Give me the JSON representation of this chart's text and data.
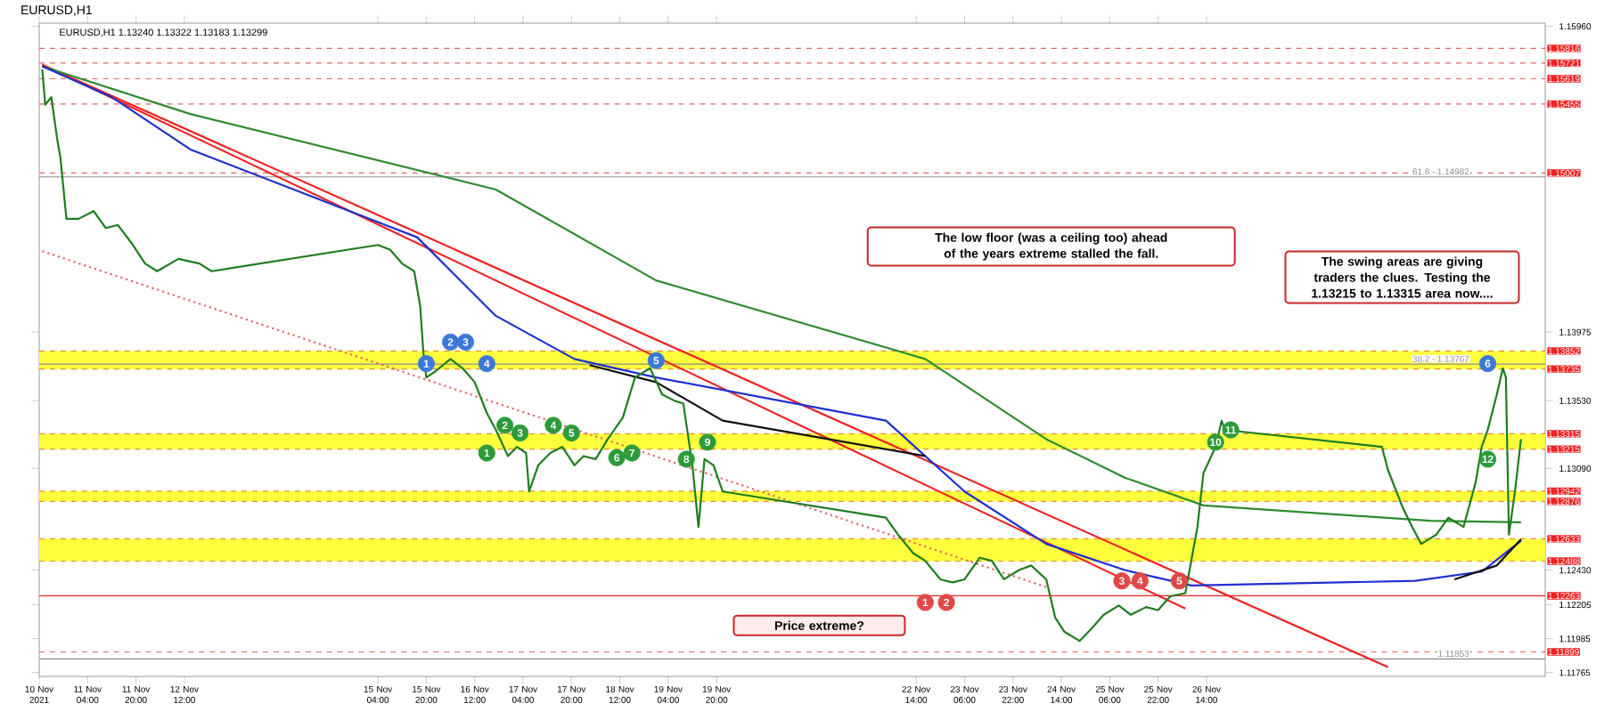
{
  "chart_data": {
    "type": "line",
    "title": "EURUSD,H1",
    "subtitle": "EURUSD,H1  1.13240 1.13322 1.13183 1.13299",
    "xlim": [
      "2021-11-10T12:00",
      "2021-12-01T06:00"
    ],
    "ylim": [
      1.1174,
      1.1598
    ],
    "xticks": [
      {
        "value": "2021-11-10T12:00",
        "label": "10 Nov 2021"
      },
      {
        "value": "2021-11-11T04:00",
        "label": "11 Nov 04:00"
      },
      {
        "value": "2021-11-11T20:00",
        "label": "11 Nov 20:00"
      },
      {
        "value": "2021-11-12T12:00",
        "label": "12 Nov 12:00"
      },
      {
        "value": "2021-11-15T04:00",
        "label": "15 Nov 04:00"
      },
      {
        "value": "2021-11-15T20:00",
        "label": "15 Nov 20:00"
      },
      {
        "value": "2021-11-16T12:00",
        "label": "16 Nov 12:00"
      },
      {
        "value": "2021-11-17T04:00",
        "label": "17 Nov 04:00"
      },
      {
        "value": "2021-11-17T20:00",
        "label": "17 Nov 20:00"
      },
      {
        "value": "2021-11-18T12:00",
        "label": "18 Nov 12:00"
      },
      {
        "value": "2021-11-19T04:00",
        "label": "19 Nov 04:00"
      },
      {
        "value": "2021-11-19T20:00",
        "label": "19 Nov 20:00"
      },
      {
        "value": "2021-11-22T14:00",
        "label": "22 Nov 14:00"
      },
      {
        "value": "2021-11-23T06:00",
        "label": "23 Nov 06:00"
      },
      {
        "value": "2021-11-23T22:00",
        "label": "23 Nov 22:00"
      },
      {
        "value": "2021-11-24T14:00",
        "label": "24 Nov 14:00"
      },
      {
        "value": "2021-11-25T06:00",
        "label": "25 Nov 06:00"
      },
      {
        "value": "2021-11-25T22:00",
        "label": "25 Nov 22:00"
      },
      {
        "value": "2021-11-26T14:00",
        "label": "26 Nov 14:00"
      }
    ],
    "yticks": [
      {
        "value": 1.11765,
        "label": "1.11765"
      },
      {
        "value": 1.11985,
        "label": "1.11985"
      },
      {
        "value": 1.12205,
        "label": "1.12205"
      },
      {
        "value": 1.1243,
        "label": "1.12430"
      },
      {
        "value": 1.1309,
        "label": "1.13090"
      },
      {
        "value": 1.1353,
        "label": "1.13530"
      },
      {
        "value": 1.13975,
        "label": "1.13975"
      },
      {
        "value": 1.1596,
        "label": "1.15960"
      }
    ],
    "bands": [
      {
        "axis": "y",
        "from": 1.13735,
        "to": 1.13852,
        "color": "#ffff3c"
      },
      {
        "axis": "y",
        "from": 1.13215,
        "to": 1.13315,
        "color": "#ffff3c"
      },
      {
        "axis": "y",
        "from": 1.12876,
        "to": 1.12942,
        "color": "#ffff3c"
      },
      {
        "axis": "y",
        "from": 1.12488,
        "to": 1.12633,
        "color": "#ffff3c"
      }
    ],
    "ref_lines": [
      {
        "axis": "y",
        "value": 1.15816,
        "label": "1.15816",
        "color": "#e06666",
        "line_style": "dashed"
      },
      {
        "axis": "y",
        "value": 1.15721,
        "label": "1.15721",
        "color": "#e06666",
        "line_style": "dashed"
      },
      {
        "axis": "y",
        "value": 1.15619,
        "label": "1.15619",
        "color": "#e06666",
        "line_style": "dashed"
      },
      {
        "axis": "y",
        "value": 1.15455,
        "label": "1.15455",
        "color": "#e06666",
        "line_style": "dashed"
      },
      {
        "axis": "y",
        "value": 1.15007,
        "label": "1.15007",
        "color": "#e06666",
        "line_style": "dashed"
      },
      {
        "axis": "y",
        "value": 1.14982,
        "label": "1.14982",
        "color": "#8c8c8c",
        "line_style": "solid"
      },
      {
        "axis": "y",
        "value": 1.13852,
        "label": "1.13852",
        "color": "#e0902c",
        "line_style": "dashed"
      },
      {
        "axis": "y",
        "value": 1.13767,
        "label": "1.13767",
        "color": "#8c8c8c",
        "line_style": "solid"
      },
      {
        "axis": "y",
        "value": 1.13735,
        "label": "1.13735",
        "color": "#e0902c",
        "line_style": "dashed"
      },
      {
        "axis": "y",
        "value": 1.13315,
        "label": "1.13315",
        "color": "#e0902c",
        "line_style": "dashed"
      },
      {
        "axis": "y",
        "value": 1.13215,
        "label": "1.13215",
        "color": "#e0902c",
        "line_style": "dashed"
      },
      {
        "axis": "y",
        "value": 1.12942,
        "label": "1.12942",
        "color": "#e0902c",
        "line_style": "dashed"
      },
      {
        "axis": "y",
        "value": 1.12876,
        "label": "1.12876",
        "color": "#e0902c",
        "line_style": "dashed"
      },
      {
        "axis": "y",
        "value": 1.12633,
        "label": "1.12633",
        "color": "#e0902c",
        "line_style": "dashed"
      },
      {
        "axis": "y",
        "value": 1.12488,
        "label": "1.12488",
        "color": "#e0902c",
        "line_style": "dashed"
      },
      {
        "axis": "y",
        "value": 1.12263,
        "label": "1.12263",
        "color": "#ee2222",
        "line_style": "solid"
      },
      {
        "axis": "y",
        "value": 1.11899,
        "label": "1.11899",
        "color": "#e06666",
        "line_style": "dashed"
      },
      {
        "axis": "y",
        "value": 1.11853,
        "label": "1.11853",
        "color": "#8c8c8c",
        "line_style": "solid"
      }
    ],
    "series": [
      {
        "type": "line",
        "color": "#ee2222",
        "line_style": "solid",
        "x": [
          "2021-11-10T13:00",
          "2021-11-26T07:00"
        ],
        "values": [
          1.1571,
          1.1218
        ]
      },
      {
        "type": "line",
        "color": "#ee2222",
        "line_style": "solid",
        "x": [
          "2021-11-10T13:00",
          "2021-11-29T02:00"
        ],
        "values": [
          1.1571,
          1.118
        ]
      },
      {
        "type": "line",
        "color": "#e06666",
        "line_style": "dotted",
        "x": [
          "2021-11-10T13:00",
          "2021-11-24T09:00"
        ],
        "values": [
          1.145,
          1.1232
        ]
      },
      {
        "type": "line",
        "color": "#2e8b2e",
        "line_style": "solid",
        "x": [
          "2021-11-10T13:00",
          "2021-11-12T14:00",
          "2021-11-16T19:00",
          "2021-11-19T00:00",
          "2021-11-22T17:00",
          "2021-11-24T09:00",
          "2021-11-25T11:00",
          "2021-11-26T13:00",
          "2021-11-29T16:00",
          "2021-11-30T22:00"
        ],
        "values": [
          1.157,
          1.1539,
          1.149,
          1.1431,
          1.138,
          1.1328,
          1.1303,
          1.1285,
          1.1275,
          1.1274
        ]
      },
      {
        "type": "line",
        "color": "#1f2fd0",
        "line_style": "solid",
        "x": [
          "2021-11-10T13:00",
          "2021-11-11T12:00",
          "2021-11-12T14:00",
          "2021-11-15T17:00",
          "2021-11-16T19:00",
          "2021-11-17T21:00",
          "2021-11-19T00:00",
          "2021-11-22T04:00",
          "2021-11-23T06:00",
          "2021-11-24T09:00",
          "2021-11-25T11:00",
          "2021-11-26T09:00",
          "2021-11-29T11:00",
          "2021-11-30T09:00",
          "2021-11-30T22:00"
        ],
        "values": [
          1.157,
          1.155,
          1.1516,
          1.1459,
          1.1408,
          1.138,
          1.1368,
          1.134,
          1.1294,
          1.126,
          1.1243,
          1.1233,
          1.1236,
          1.1242,
          1.1262
        ]
      },
      {
        "type": "line",
        "color": "#111111",
        "line_style": "solid",
        "x": [
          "2021-11-18T02:00",
          "2021-11-19T00:00",
          "2021-11-19T22:00",
          "2021-11-22T17:00",
          "2021-11-25T10:00",
          "2021-11-30T00:00",
          "2021-11-30T14:00",
          "2021-11-30T22:00"
        ],
        "values": [
          1.1376,
          1.1365,
          1.134,
          1.1317,
          null,
          1.1237,
          1.1246,
          1.1263
        ]
      },
      {
        "color": "#1e7d1e",
        "line_style": "solid",
        "x": [
          "2021-11-10T13:00",
          "2021-11-10T14:00",
          "2021-11-10T16:00",
          "2021-11-10T18:00",
          "2021-11-10T19:00",
          "2021-11-10T21:00",
          "2021-11-11T01:00",
          "2021-11-11T06:00",
          "2021-11-11T10:00",
          "2021-11-11T14:00",
          "2021-11-11T19:00",
          "2021-11-11T23:00",
          "2021-11-12T03:00",
          "2021-11-12T10:00",
          "2021-11-12T17:00",
          "2021-11-12T21:00",
          "2021-11-15T04:00",
          "2021-11-15T08:00",
          "2021-11-15T12:00",
          "2021-11-15T16:00",
          "2021-11-15T18:00",
          "2021-11-15T19:00",
          "2021-11-15T20:00",
          "2021-11-15T23:00",
          "2021-11-16T04:00",
          "2021-11-16T08:00",
          "2021-11-16T12:00",
          "2021-11-16T16:00",
          "2021-11-16T19:00",
          "2021-11-16T23:00",
          "2021-11-17T02:00",
          "2021-11-17T05:00",
          "2021-11-17T06:00",
          "2021-11-17T09:00",
          "2021-11-17T13:00",
          "2021-11-17T17:00",
          "2021-11-17T21:00",
          "2021-11-18T00:00",
          "2021-11-18T04:00",
          "2021-11-18T08:00",
          "2021-11-18T13:00",
          "2021-11-18T17:00",
          "2021-11-18T22:00",
          "2021-11-19T02:00",
          "2021-11-19T06:00",
          "2021-11-19T09:00",
          "2021-11-19T12:00",
          "2021-11-19T14:00",
          "2021-11-19T16:00",
          "2021-11-19T19:00",
          "2021-11-19T22:00",
          "2021-11-22T04:00",
          "2021-11-22T08:00",
          "2021-11-22T13:00",
          "2021-11-22T17:00",
          "2021-11-22T22:00",
          "2021-11-23T02:00",
          "2021-11-23T06:00",
          "2021-11-23T11:00",
          "2021-11-23T15:00",
          "2021-11-23T19:00",
          "2021-11-24T00:00",
          "2021-11-24T04:00",
          "2021-11-24T09:00",
          "2021-11-24T12:00",
          "2021-11-24T15:00",
          "2021-11-24T20:00",
          "2021-11-25T00:00",
          "2021-11-25T04:00",
          "2021-11-25T09:00",
          "2021-11-25T13:00",
          "2021-11-25T18:00",
          "2021-11-25T22:00",
          "2021-11-26T02:00",
          "2021-11-26T07:00",
          "2021-11-26T11:00",
          "2021-11-26T13:00",
          "2021-11-26T17:00",
          "2021-11-26T19:00",
          "2021-11-26T20:00",
          "2021-11-29T00:00",
          "2021-11-29T02:00",
          "2021-11-29T07:00",
          "2021-11-29T10:00",
          "2021-11-29T13:00",
          "2021-11-29T18:00",
          "2021-11-29T22:00",
          "2021-11-30T03:00",
          "2021-11-30T07:00",
          "2021-11-30T09:00",
          "2021-11-30T11:00",
          "2021-11-30T14:00",
          "2021-11-30T16:00",
          "2021-11-30T17:00",
          "2021-11-30T18:00",
          "2021-11-30T20:00",
          "2021-11-30T21:00",
          "2021-11-30T22:00"
        ],
        "values": [
          1.1568,
          1.1545,
          1.155,
          1.1522,
          1.1511,
          1.1471,
          1.1471,
          1.1476,
          1.1465,
          1.1467,
          1.1454,
          1.1442,
          1.1437,
          1.1445,
          1.1442,
          1.1437,
          1.1454,
          1.1451,
          1.1442,
          1.1437,
          1.1414,
          1.1385,
          1.1368,
          1.1372,
          1.138,
          1.1374,
          1.1365,
          1.1345,
          1.1334,
          1.1317,
          1.1323,
          1.1319,
          1.1294,
          1.1311,
          1.1319,
          1.1323,
          1.1311,
          1.1317,
          1.1315,
          1.1328,
          1.1342,
          1.1368,
          1.1374,
          1.1357,
          1.1353,
          1.1351,
          1.1311,
          1.1271,
          1.1315,
          1.1311,
          1.1294,
          1.1277,
          1.1266,
          1.1254,
          1.1249,
          1.1237,
          1.1235,
          1.1237,
          1.1251,
          1.1249,
          1.1237,
          1.1243,
          1.1246,
          1.1237,
          1.1212,
          1.1203,
          1.1197,
          1.1205,
          1.1214,
          1.122,
          1.1214,
          1.1219,
          1.1217,
          1.1226,
          1.1228,
          1.1271,
          1.1306,
          1.1323,
          1.134,
          1.1334,
          1.1323,
          1.1308,
          1.1283,
          1.1271,
          1.126,
          1.1266,
          1.1277,
          1.1271,
          1.13,
          1.1323,
          1.1334,
          1.1357,
          1.1374,
          1.1368,
          1.1266,
          1.1294,
          1.1311,
          1.1328
        ]
      },
      {
        "type": "scatter",
        "marker": "circle",
        "color": "#3c78d8",
        "x": [
          "2021-11-15T20:00",
          "2021-11-16T04:00",
          "2021-11-16T09:00",
          "2021-11-16T16:00",
          "2021-11-19T00:00",
          "2021-11-30T11:00"
        ],
        "values": [
          1.1377,
          1.1391,
          1.1391,
          1.1377,
          1.1379,
          1.1377
        ]
      },
      {
        "type": "scatter",
        "marker": "circle",
        "color": "#2e9b3a",
        "x": [
          "2021-11-16T16:00",
          "2021-11-16T22:00",
          "2021-11-17T03:00",
          "2021-11-17T14:00",
          "2021-11-17T20:00",
          "2021-11-18T11:00",
          "2021-11-18T16:00",
          "2021-11-19T10:00",
          "2021-11-19T17:00",
          "2021-11-26T17:00",
          "2021-11-26T22:00",
          "2021-11-30T11:00"
        ],
        "values": [
          1.1319,
          1.1337,
          1.1332,
          1.1337,
          1.1332,
          1.1316,
          1.1319,
          1.1315,
          1.1326,
          1.1326,
          1.1334,
          1.1315
        ]
      },
      {
        "type": "scatter",
        "marker": "circle",
        "color": "#e04848",
        "x": [
          "2021-11-22T17:00",
          "2021-11-23T00:00",
          "2021-11-25T10:00",
          "2021-11-25T16:00",
          "2021-11-26T05:00"
        ],
        "values": [
          1.1222,
          1.1222,
          1.1236,
          1.1236,
          1.1236
        ]
      }
    ],
    "annotations": [
      "The swing areas are giving traders the clues.  Testing the 1.13215 to 1.13315 area now....",
      "The low floor (was a ceiling too) ahead of the years extreme stalled the fall.",
      "Price extreme?",
      "61.8 -",
      "38.2 -",
      {
        "text": "1",
        "x": "2021-11-15T20:00",
        "y": 1.1377
      },
      {
        "text": "2",
        "x": "2021-11-16T04:00",
        "y": 1.1391
      },
      {
        "text": "3",
        "x": "2021-11-16T09:00",
        "y": 1.1391
      },
      {
        "text": "4",
        "x": "2021-11-16T16:00",
        "y": 1.1377
      },
      {
        "text": "5",
        "x": "2021-11-19T00:00",
        "y": 1.1379
      },
      {
        "text": "6",
        "x": "2021-11-30T11:00",
        "y": 1.1377
      },
      {
        "text": "1",
        "x": "2021-11-16T16:00",
        "y": 1.1319
      },
      {
        "text": "2",
        "x": "2021-11-16T22:00",
        "y": 1.1337
      },
      {
        "text": "3",
        "x": "2021-11-17T03:00",
        "y": 1.1332
      },
      {
        "text": "4",
        "x": "2021-11-17T14:00",
        "y": 1.1337
      },
      {
        "text": "5",
        "x": "2021-11-17T20:00",
        "y": 1.1332
      },
      {
        "text": "6",
        "x": "2021-11-18T11:00",
        "y": 1.1316
      },
      {
        "text": "7",
        "x": "2021-11-18T16:00",
        "y": 1.1319
      },
      {
        "text": "8",
        "x": "2021-11-19T10:00",
        "y": 1.1315
      },
      {
        "text": "9",
        "x": "2021-11-19T17:00",
        "y": 1.1326
      },
      {
        "text": "10",
        "x": "2021-11-26T17:00",
        "y": 1.1326
      },
      {
        "text": "11",
        "x": "2021-11-26T22:00",
        "y": 1.1334
      },
      {
        "text": "12",
        "x": "2021-11-30T11:00",
        "y": 1.1315
      },
      {
        "text": "1",
        "x": "2021-11-22T17:00",
        "y": 1.1222
      },
      {
        "text": "2",
        "x": "2021-11-23T00:00",
        "y": 1.1222
      },
      {
        "text": "3",
        "x": "2021-11-25T10:00",
        "y": 1.1236
      },
      {
        "text": "4",
        "x": "2021-11-25T16:00",
        "y": 1.1236
      },
      {
        "text": "5",
        "x": "2021-11-26T05:00",
        "y": 1.1236
      }
    ]
  }
}
